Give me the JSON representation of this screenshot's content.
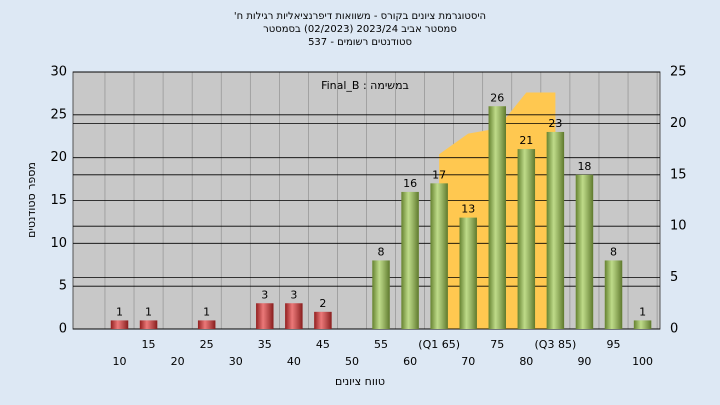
{
  "chart_data": {
    "type": "bar",
    "title": [
      "היסטוגרמת ציונים בקורס - משוואות דיפרנציאליות רגילות ח'",
      "סמסטר אביב 2023/24  (02/2023)  בסמסטר",
      "סטודנטים רשומים - 537"
    ],
    "annotation": "במשימה : Final_B",
    "ylabel": "מספר סטודנטים",
    "xlabel": "טווח ציונים",
    "categories": [
      "10",
      "15",
      "20",
      "25",
      "30",
      "35",
      "40",
      "45",
      "50",
      "55",
      "60",
      "(Q1 65)",
      "70",
      "75",
      "80",
      "(Q3 85)",
      "90",
      "95",
      "100"
    ],
    "values": [
      1,
      1,
      0,
      1,
      0,
      3,
      3,
      2,
      0,
      8,
      16,
      17,
      13,
      26,
      21,
      23,
      18,
      8,
      1
    ],
    "colors": [
      "#e03030",
      "#e03030",
      "#e03030",
      "#e03030",
      "#e03030",
      "#e03030",
      "#e03030",
      "#e03030",
      "#e03030",
      "#9cc84a",
      "#9cc84a",
      "#9cc84a",
      "#9cc84a",
      "#9cc84a",
      "#9cc84a",
      "#9cc84a",
      "#9cc84a",
      "#9cc84a",
      "#9cc84a"
    ],
    "area": {
      "color": "#ffc850",
      "axis": "y2",
      "x": [
        65,
        70,
        75,
        80,
        85
      ],
      "values": [
        17,
        19,
        19.5,
        23,
        23
      ]
    },
    "ylim": [
      0,
      30
    ],
    "yticks": [
      0,
      5,
      10,
      15,
      20,
      25,
      30
    ],
    "y2lim": [
      0,
      25
    ],
    "y2ticks": [
      0,
      5,
      10,
      15,
      20,
      25
    ],
    "grid": true
  }
}
